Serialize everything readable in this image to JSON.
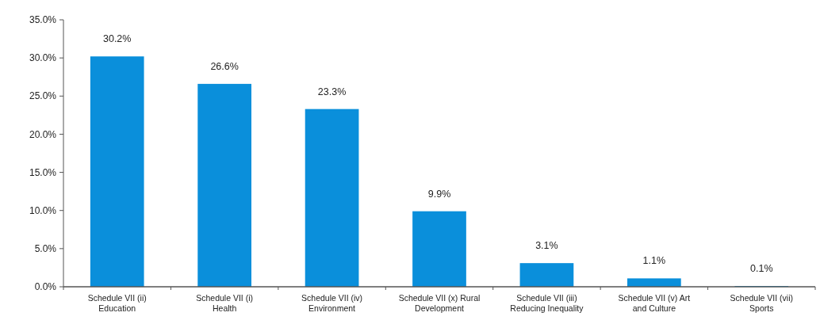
{
  "chart_data": {
    "type": "bar",
    "categories": [
      "Schedule VII (ii)\nEducation",
      "Schedule VII (i)\nHealth",
      "Schedule VII (iv)\nEnvironment",
      "Schedule VII (x) Rural\nDevelopment",
      "Schedule VII (iii)\nReducing Inequality",
      "Schedule VII (v) Art\nand Culture",
      "Schedule VII (vii)\nSports"
    ],
    "values": [
      30.2,
      26.6,
      23.3,
      9.9,
      3.1,
      1.1,
      0.1
    ],
    "value_labels": [
      "30.2%",
      "26.6%",
      "23.3%",
      "9.9%",
      "3.1%",
      "1.1%",
      "0.1%"
    ],
    "color": "#0a8fdb",
    "ylim": [
      0,
      35
    ],
    "yticks": [
      {
        "value": 0,
        "label": "0.0%"
      },
      {
        "value": 5,
        "label": "5.0%"
      },
      {
        "value": 10,
        "label": "10.0%"
      },
      {
        "value": 15,
        "label": "15.0%"
      },
      {
        "value": 20,
        "label": "20.0%"
      },
      {
        "value": 25,
        "label": "25.0%"
      },
      {
        "value": 30,
        "label": "30.0%"
      },
      {
        "value": 35,
        "label": "35.0%"
      }
    ],
    "grid": false
  }
}
